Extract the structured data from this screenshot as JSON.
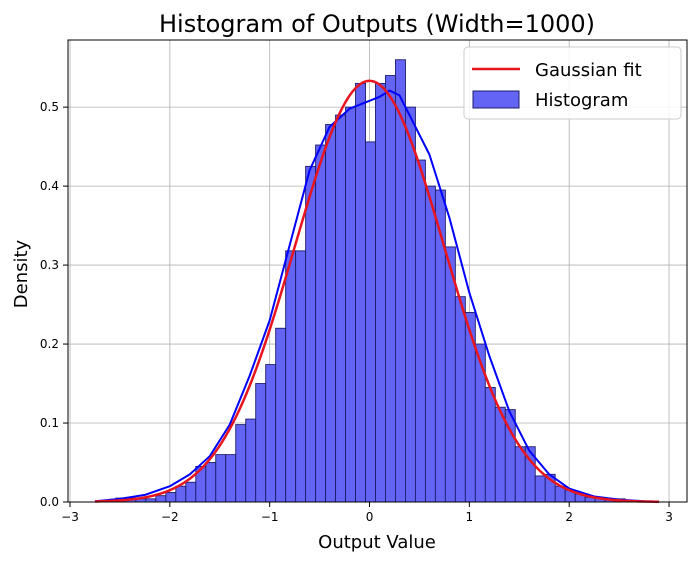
{
  "chart_data": {
    "type": "bar",
    "title": "Histogram of Outputs (Width=1000)",
    "xlabel": "Output Value",
    "ylabel": "Density",
    "xlim": [
      -3.02,
      3.18
    ],
    "ylim": [
      0,
      0.585
    ],
    "x_ticks": [
      -3,
      -2,
      -1,
      0,
      1,
      2,
      3
    ],
    "x_tick_labels": [
      "−3",
      "−2",
      "−1",
      "0",
      "1",
      "2",
      "3"
    ],
    "y_ticks": [
      0.0,
      0.1,
      0.2,
      0.3,
      0.4,
      0.5
    ],
    "y_tick_labels": [
      "0.0",
      "0.1",
      "0.2",
      "0.3",
      "0.4",
      "0.5"
    ],
    "grid": true,
    "legend_position": "top-right",
    "bins": {
      "start": -2.74,
      "width": 0.1,
      "density": [
        0.0,
        0.0,
        0.005,
        0.005,
        0.004,
        0.004,
        0.008,
        0.012,
        0.02,
        0.025,
        0.045,
        0.05,
        0.06,
        0.06,
        0.098,
        0.105,
        0.15,
        0.174,
        0.22,
        0.318,
        0.318,
        0.425,
        0.452,
        0.478,
        0.49,
        0.5,
        0.53,
        0.456,
        0.53,
        0.54,
        0.56,
        0.5,
        0.433,
        0.4,
        0.395,
        0.323,
        0.26,
        0.24,
        0.2,
        0.145,
        0.12,
        0.117,
        0.07,
        0.07,
        0.033,
        0.035,
        0.02,
        0.015,
        0.01,
        0.006,
        0.005,
        0.004,
        0.004,
        0.0,
        0.0
      ]
    },
    "series": [
      {
        "name": "Histogram",
        "kind": "histogram",
        "fill_color": "#6464f4",
        "edge_color": "#1c1c6c"
      },
      {
        "name": "kde",
        "kind": "line",
        "color": "#0000ff",
        "x": [
          -2.75,
          -2.5,
          -2.25,
          -2.0,
          -1.8,
          -1.6,
          -1.4,
          -1.2,
          -1.0,
          -0.8,
          -0.6,
          -0.4,
          -0.2,
          0.0,
          0.1,
          0.2,
          0.3,
          0.4,
          0.6,
          0.8,
          1.0,
          1.2,
          1.4,
          1.6,
          1.8,
          2.0,
          2.25,
          2.5,
          2.75,
          2.9
        ],
        "y": [
          0.001,
          0.004,
          0.009,
          0.02,
          0.035,
          0.058,
          0.098,
          0.16,
          0.23,
          0.325,
          0.42,
          0.475,
          0.498,
          0.508,
          0.513,
          0.521,
          0.515,
          0.49,
          0.44,
          0.36,
          0.265,
          0.185,
          0.115,
          0.065,
          0.035,
          0.017,
          0.007,
          0.003,
          0.001,
          0.0005
        ]
      },
      {
        "name": "Gaussian fit",
        "kind": "gaussian",
        "color": "#e8141e",
        "mean": 0.0,
        "std": 0.748,
        "x_range": [
          -2.75,
          2.9
        ]
      }
    ],
    "legend": [
      "Gaussian fit",
      "Histogram"
    ]
  }
}
